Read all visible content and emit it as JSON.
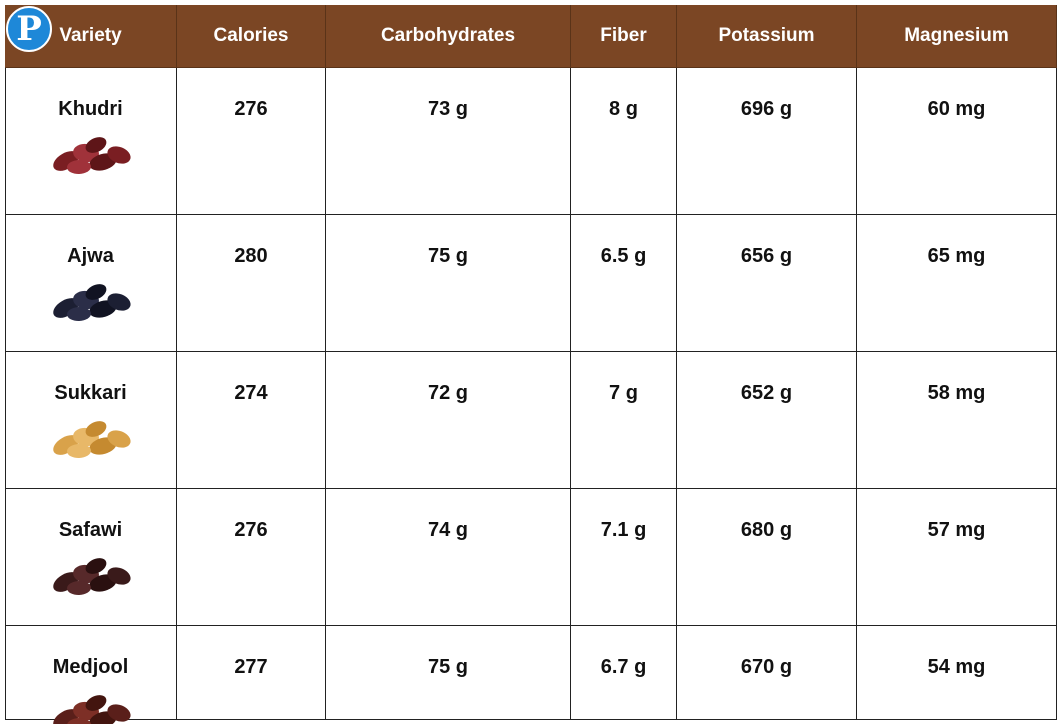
{
  "logo": "P",
  "table": {
    "header": [
      "Variety",
      "Calories",
      "Carbohydrates",
      "Fiber",
      "Potassium",
      "Magnesium"
    ],
    "rows": [
      [
        "Khudri",
        "276",
        "73 g",
        "8 g",
        "696 g",
        "60 mg"
      ],
      [
        "Ajwa",
        "280",
        "75 g",
        "6.5 g",
        "656 g",
        "65 mg"
      ],
      [
        "Sukkari",
        "274",
        "72 g",
        "7 g",
        "652 g",
        "58 mg"
      ],
      [
        "Safawi",
        "276",
        "74 g",
        "7.1 g",
        "680 g",
        "57 mg"
      ],
      [
        "Medjool",
        "277",
        "75 g",
        "6.7 g",
        "670 g",
        "54 mg"
      ]
    ]
  }
}
